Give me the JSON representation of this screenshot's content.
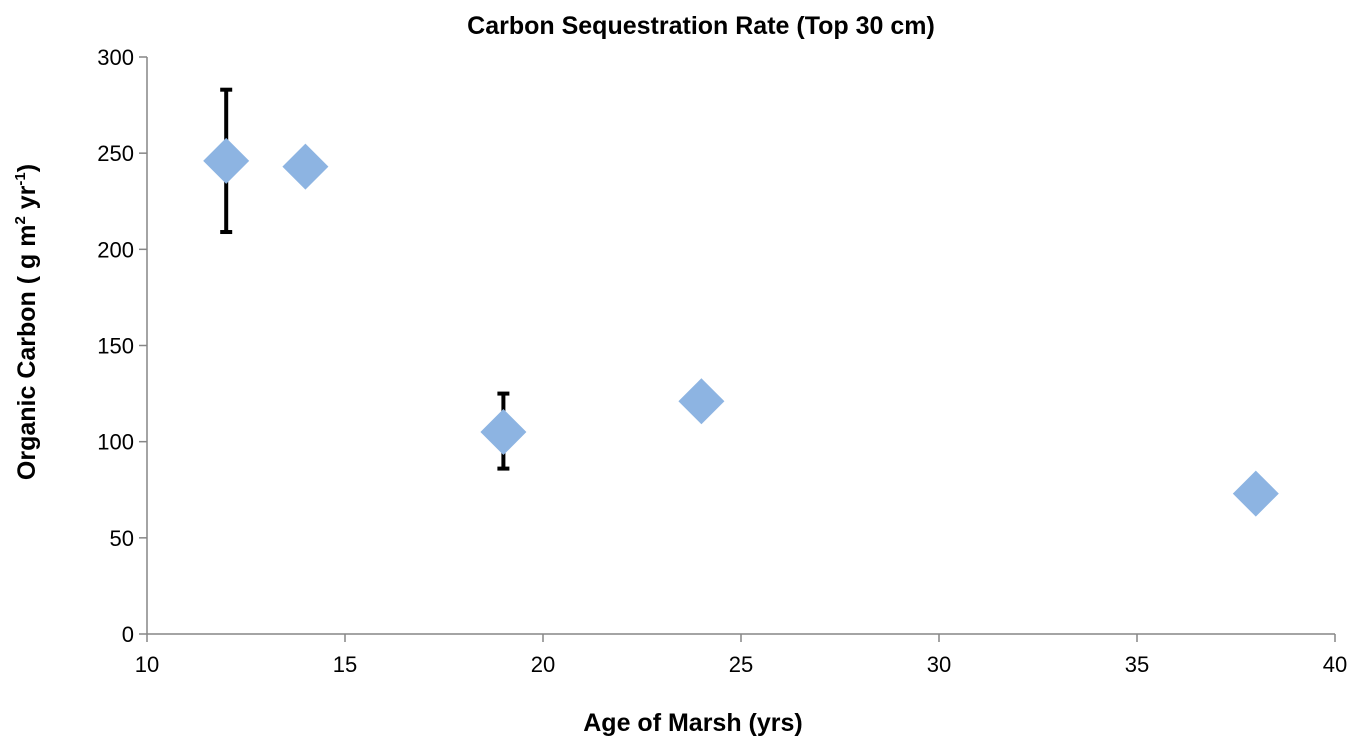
{
  "chart_data": {
    "type": "scatter",
    "title": "Carbon Sequestration Rate (Top 30 cm)",
    "xlabel": "Age of Marsh (yrs)",
    "ylabel": {
      "main": "Organic Carbon ( g m",
      "sup1": "2",
      "mid": " yr",
      "sup2": "-1",
      "end": ")"
    },
    "xlim": [
      10,
      40
    ],
    "ylim": [
      0,
      300
    ],
    "x_ticks": [
      10,
      15,
      20,
      25,
      30,
      35,
      40
    ],
    "y_ticks": [
      0,
      50,
      100,
      150,
      200,
      250,
      300
    ],
    "grid": false,
    "legend": "none",
    "marker_color": "#8DB4E2",
    "error_bar_color": "#000000",
    "points": [
      {
        "x": 12,
        "y": 246,
        "err_low": 209,
        "err_high": 283
      },
      {
        "x": 14,
        "y": 243
      },
      {
        "x": 19,
        "y": 105,
        "err_low": 86,
        "err_high": 125
      },
      {
        "x": 24,
        "y": 121,
        "err_low": 119,
        "err_high": 123
      },
      {
        "x": 38,
        "y": 73
      }
    ]
  }
}
